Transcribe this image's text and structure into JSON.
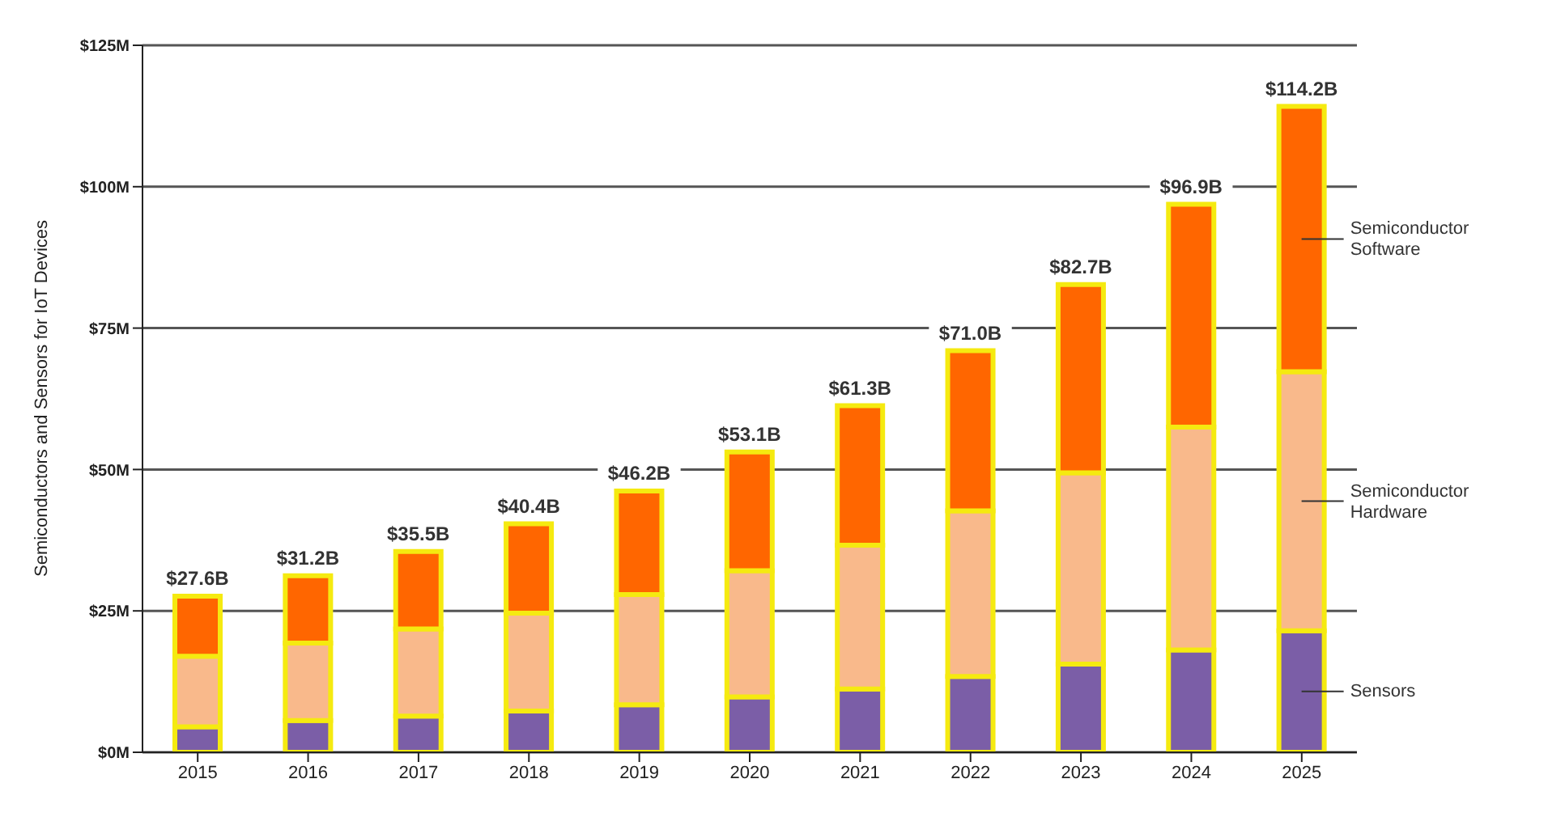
{
  "chart_data": {
    "type": "bar",
    "stacked": true,
    "ylabel": "Semiconductors and Sensors for IoT Devices",
    "categories": [
      "2015",
      "2016",
      "2017",
      "2018",
      "2019",
      "2020",
      "2021",
      "2022",
      "2023",
      "2024",
      "2025"
    ],
    "series": [
      {
        "name": "Sensors",
        "color": "#7b5ea7",
        "values": [
          4.5,
          5.6,
          6.4,
          7.3,
          8.4,
          9.8,
          11.2,
          13.4,
          15.6,
          18.1,
          21.5
        ]
      },
      {
        "name": "Semiconductor Hardware",
        "color": "#f9b98b",
        "values": [
          12.5,
          13.7,
          15.4,
          17.3,
          19.5,
          22.3,
          25.4,
          29.3,
          33.8,
          39.4,
          45.8
        ]
      },
      {
        "name": "Semiconductor Software",
        "color": "#ff6600",
        "values": [
          10.6,
          11.9,
          13.7,
          15.8,
          18.3,
          21.0,
          24.7,
          28.3,
          33.3,
          39.4,
          46.9
        ]
      }
    ],
    "totals": [
      "$27.6B",
      "$31.2B",
      "$35.5B",
      "$40.4B",
      "$46.2B",
      "$53.1B",
      "$61.3B",
      "$71.0B",
      "$82.7B",
      "$96.9B",
      "$114.2B"
    ],
    "ylim": [
      0,
      125
    ],
    "yticks": [
      {
        "value": 0,
        "label": "$0M"
      },
      {
        "value": 25,
        "label": "$25M"
      },
      {
        "value": 50,
        "label": "$50M"
      },
      {
        "value": 75,
        "label": "$75M"
      },
      {
        "value": 100,
        "label": "$100M"
      },
      {
        "value": 125,
        "label": "$125M"
      }
    ],
    "grid": "y"
  }
}
